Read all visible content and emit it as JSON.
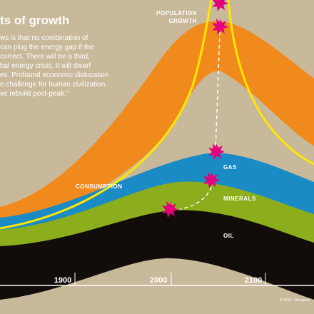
{
  "title": "ts of growth",
  "quote": [
    "ws is that no combination of",
    "can plug the energy gap if the",
    "correct. There will be a third,",
    "bal energy crisis. It will dwarf",
    "es. Profound economic dislocation",
    "e challenge for human civilization",
    "ve rebuild post-peak.\""
  ],
  "labels": {
    "population": [
      "POPULATION",
      "GROWTH"
    ],
    "consumption": "CONSUMPTION",
    "gas": "GAS",
    "minerals": "MINERALS",
    "oil": "OIL"
  },
  "axis": [
    "1900",
    "2000",
    "2100"
  ],
  "credit": "© 2010 • Designed"
}
